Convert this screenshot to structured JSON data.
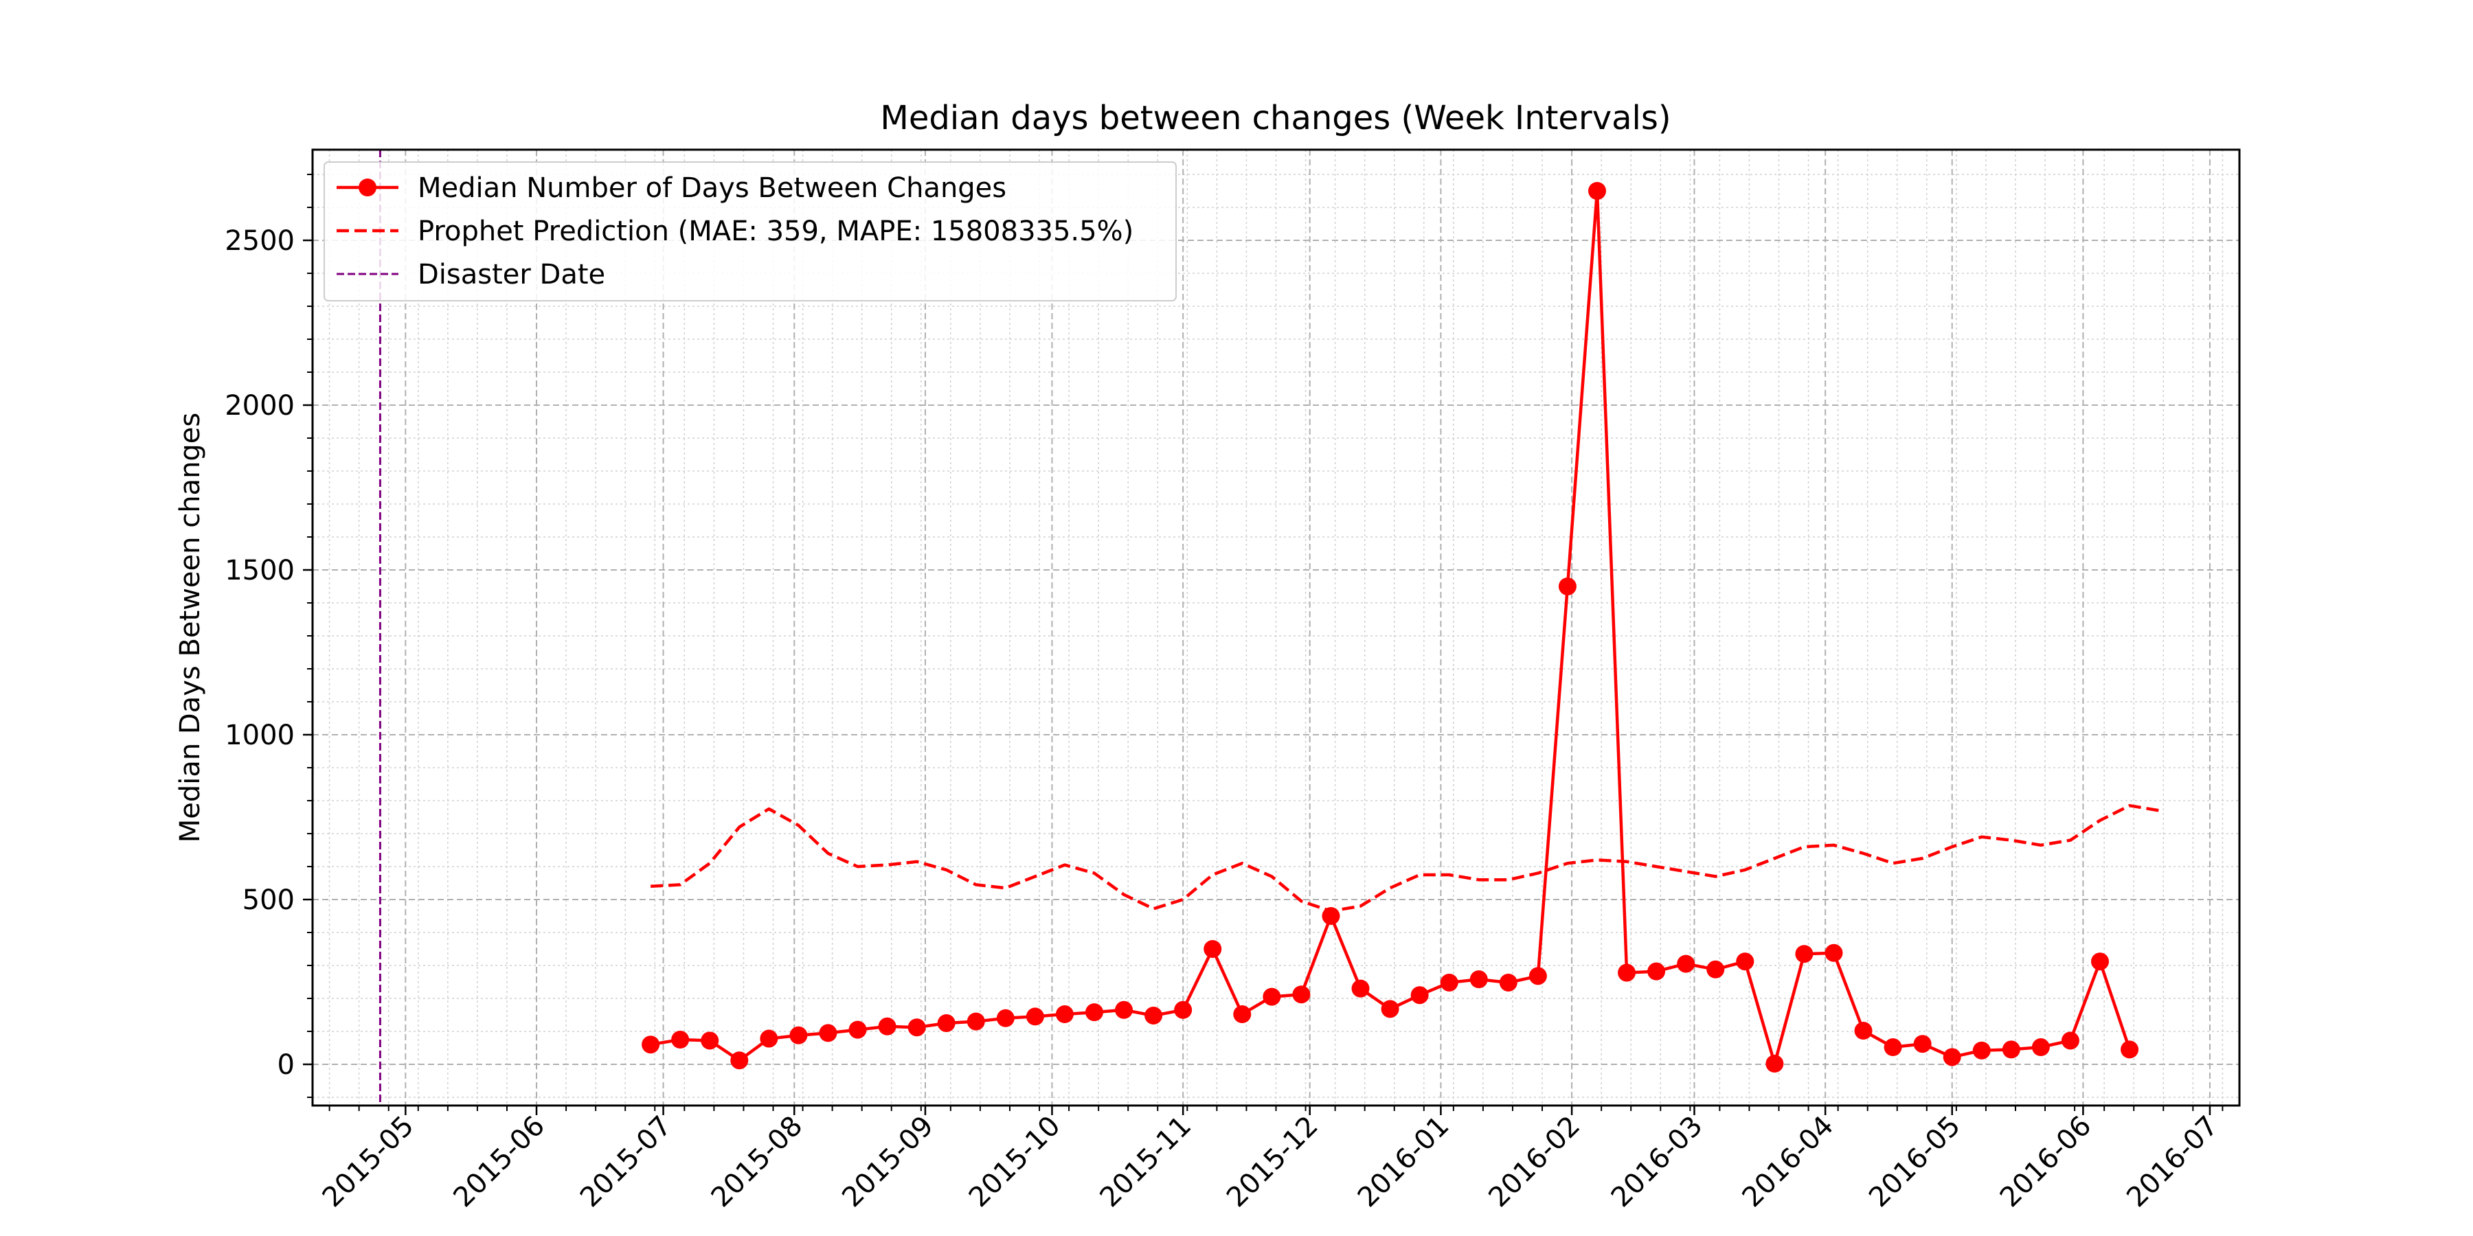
{
  "chart_data": {
    "type": "line",
    "title": "Median days between changes (Week Intervals)",
    "xlabel": "",
    "ylabel": "Median Days Between changes",
    "x_axis": {
      "type": "date",
      "range": [
        "2015-04-09",
        "2016-07-08"
      ],
      "tick_labels": [
        "2015-05",
        "2015-06",
        "2015-07",
        "2015-08",
        "2015-09",
        "2015-10",
        "2015-11",
        "2015-12",
        "2016-01",
        "2016-02",
        "2016-03",
        "2016-04",
        "2016-05",
        "2016-06",
        "2016-07"
      ],
      "tick_dates": [
        "2015-05-01",
        "2015-06-01",
        "2015-07-01",
        "2015-08-01",
        "2015-09-01",
        "2015-10-01",
        "2015-11-01",
        "2015-12-01",
        "2016-01-01",
        "2016-02-01",
        "2016-03-01",
        "2016-04-01",
        "2016-05-01",
        "2016-06-01",
        "2016-07-01"
      ]
    },
    "y_axis": {
      "range": [
        -125,
        2775
      ],
      "ticks": [
        0,
        500,
        1000,
        1500,
        2000,
        2500
      ],
      "tick_labels": [
        "0",
        "500",
        "1000",
        "1500",
        "2000",
        "2500"
      ]
    },
    "grid": true,
    "legend_position": "upper-left",
    "series": [
      {
        "name": "Median Number of Days Between Changes",
        "style": "solid-markers",
        "color": "#ff0000",
        "points": [
          [
            "2015-06-28",
            60
          ],
          [
            "2015-07-05",
            75
          ],
          [
            "2015-07-12",
            72
          ],
          [
            "2015-07-19",
            12
          ],
          [
            "2015-07-26",
            78
          ],
          [
            "2015-08-02",
            88
          ],
          [
            "2015-08-09",
            95
          ],
          [
            "2015-08-16",
            105
          ],
          [
            "2015-08-23",
            115
          ],
          [
            "2015-08-30",
            112
          ],
          [
            "2015-09-06",
            125
          ],
          [
            "2015-09-13",
            130
          ],
          [
            "2015-09-20",
            140
          ],
          [
            "2015-09-27",
            145
          ],
          [
            "2015-10-04",
            152
          ],
          [
            "2015-10-11",
            158
          ],
          [
            "2015-10-18",
            165
          ],
          [
            "2015-10-25",
            148
          ],
          [
            "2015-11-01",
            165
          ],
          [
            "2015-11-08",
            350
          ],
          [
            "2015-11-15",
            152
          ],
          [
            "2015-11-22",
            205
          ],
          [
            "2015-11-29",
            212
          ],
          [
            "2015-12-06",
            450
          ],
          [
            "2015-12-13",
            230
          ],
          [
            "2015-12-20",
            168
          ],
          [
            "2015-12-27",
            210
          ],
          [
            "2016-01-03",
            248
          ],
          [
            "2016-01-10",
            258
          ],
          [
            "2016-01-17",
            248
          ],
          [
            "2016-01-24",
            268
          ],
          [
            "2016-01-31",
            1450
          ],
          [
            "2016-02-07",
            2650
          ],
          [
            "2016-02-14",
            278
          ],
          [
            "2016-02-21",
            282
          ],
          [
            "2016-02-28",
            305
          ],
          [
            "2016-03-06",
            288
          ],
          [
            "2016-03-13",
            312
          ],
          [
            "2016-03-20",
            2
          ],
          [
            "2016-03-27",
            335
          ],
          [
            "2016-04-03",
            338
          ],
          [
            "2016-04-10",
            102
          ],
          [
            "2016-04-17",
            52
          ],
          [
            "2016-04-24",
            62
          ],
          [
            "2016-05-01",
            22
          ],
          [
            "2016-05-08",
            42
          ],
          [
            "2016-05-15",
            45
          ],
          [
            "2016-05-22",
            52
          ],
          [
            "2016-05-29",
            72
          ],
          [
            "2016-06-05",
            312
          ],
          [
            "2016-06-12",
            45
          ]
        ]
      },
      {
        "name": "Prophet Prediction (MAE: 359, MAPE: 15808335.5%)",
        "style": "dashed",
        "color": "#ff0000",
        "points": [
          [
            "2015-06-28",
            540
          ],
          [
            "2015-07-05",
            545
          ],
          [
            "2015-07-12",
            610
          ],
          [
            "2015-07-19",
            720
          ],
          [
            "2015-07-26",
            775
          ],
          [
            "2015-08-02",
            725
          ],
          [
            "2015-08-09",
            640
          ],
          [
            "2015-08-16",
            600
          ],
          [
            "2015-08-23",
            605
          ],
          [
            "2015-08-30",
            615
          ],
          [
            "2015-09-06",
            590
          ],
          [
            "2015-09-13",
            545
          ],
          [
            "2015-09-20",
            535
          ],
          [
            "2015-09-27",
            570
          ],
          [
            "2015-10-04",
            605
          ],
          [
            "2015-10-11",
            580
          ],
          [
            "2015-10-18",
            515
          ],
          [
            "2015-10-25",
            472
          ],
          [
            "2015-11-01",
            500
          ],
          [
            "2015-11-08",
            575
          ],
          [
            "2015-11-15",
            610
          ],
          [
            "2015-11-22",
            570
          ],
          [
            "2015-11-29",
            495
          ],
          [
            "2015-12-06",
            465
          ],
          [
            "2015-12-13",
            480
          ],
          [
            "2015-12-20",
            535
          ],
          [
            "2015-12-27",
            575
          ],
          [
            "2016-01-03",
            575
          ],
          [
            "2016-01-10",
            560
          ],
          [
            "2016-01-17",
            560
          ],
          [
            "2016-01-24",
            580
          ],
          [
            "2016-01-31",
            610
          ],
          [
            "2016-02-07",
            620
          ],
          [
            "2016-02-14",
            615
          ],
          [
            "2016-02-21",
            600
          ],
          [
            "2016-02-28",
            585
          ],
          [
            "2016-03-06",
            570
          ],
          [
            "2016-03-13",
            590
          ],
          [
            "2016-03-20",
            625
          ],
          [
            "2016-03-27",
            660
          ],
          [
            "2016-04-03",
            665
          ],
          [
            "2016-04-10",
            640
          ],
          [
            "2016-04-17",
            610
          ],
          [
            "2016-04-24",
            625
          ],
          [
            "2016-05-01",
            660
          ],
          [
            "2016-05-08",
            690
          ],
          [
            "2016-05-15",
            680
          ],
          [
            "2016-05-22",
            665
          ],
          [
            "2016-05-29",
            680
          ],
          [
            "2016-06-05",
            740
          ],
          [
            "2016-06-12",
            785
          ],
          [
            "2016-06-19",
            770
          ]
        ]
      }
    ],
    "reference_lines": [
      {
        "name": "Disaster Date",
        "orientation": "vertical",
        "x": "2015-04-25",
        "style": "dashed",
        "color": "#800080"
      }
    ]
  }
}
